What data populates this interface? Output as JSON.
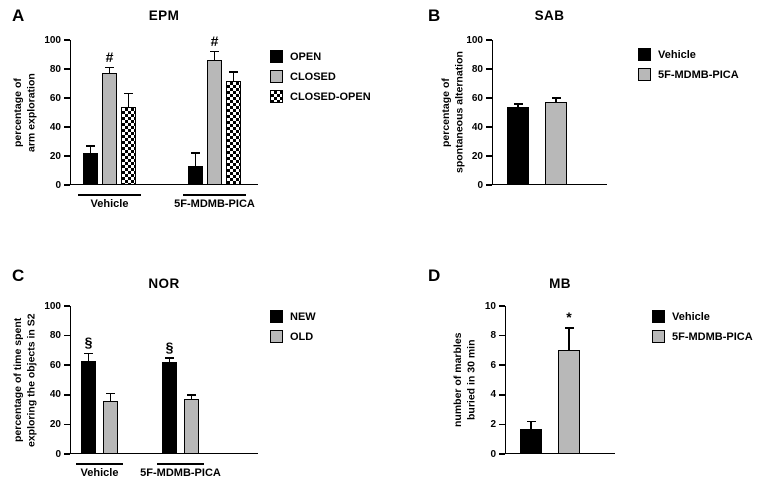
{
  "colors": {
    "bar_black": "#000000",
    "bar_gray": "#b8b8b8",
    "axis": "#000000",
    "background": "#ffffff"
  },
  "chart_data": [
    {
      "type": "bar",
      "label": "A",
      "title": "EPM",
      "ylabel": "percentage of\narm exploration",
      "ylim": [
        0,
        100
      ],
      "yticks": [
        0,
        20,
        40,
        60,
        80,
        100
      ],
      "groups": [
        "Vehicle",
        "5F-MDMB-PICA"
      ],
      "series": [
        {
          "name": "OPEN",
          "fill": "black",
          "values": [
            22,
            13
          ],
          "errors": [
            5,
            9
          ],
          "sig": [
            "",
            ""
          ]
        },
        {
          "name": "CLOSED",
          "fill": "gray",
          "values": [
            77,
            86
          ],
          "errors": [
            4,
            6
          ],
          "sig": [
            "#",
            "#"
          ]
        },
        {
          "name": "CLOSED-OPEN",
          "fill": "checker",
          "values": [
            54,
            72
          ],
          "errors": [
            9,
            6
          ],
          "sig": [
            "",
            ""
          ]
        }
      ],
      "legend_position": "right"
    },
    {
      "type": "bar",
      "label": "B",
      "title": "SAB",
      "ylabel": "percentage of\nspontaneous alternation",
      "ylim": [
        0,
        100
      ],
      "yticks": [
        0,
        20,
        40,
        60,
        80,
        100
      ],
      "groups": [
        ""
      ],
      "series": [
        {
          "name": "Vehicle",
          "fill": "black",
          "values": [
            54
          ],
          "errors": [
            2
          ],
          "sig": [
            ""
          ]
        },
        {
          "name": "5F-MDMB-PICA",
          "fill": "gray",
          "values": [
            57
          ],
          "errors": [
            3
          ],
          "sig": [
            ""
          ]
        }
      ],
      "legend_position": "right"
    },
    {
      "type": "bar",
      "label": "C",
      "title": "NOR",
      "ylabel": "percentage of time spent\nexploring the objects in S2",
      "ylim": [
        0,
        100
      ],
      "yticks": [
        0,
        20,
        40,
        60,
        80,
        100
      ],
      "groups": [
        "Vehicle",
        "5F-MDMB-PICA"
      ],
      "series": [
        {
          "name": "NEW",
          "fill": "black",
          "values": [
            63,
            62
          ],
          "errors": [
            5,
            3
          ],
          "sig": [
            "§",
            "§"
          ]
        },
        {
          "name": "OLD",
          "fill": "gray",
          "values": [
            36,
            37
          ],
          "errors": [
            5,
            3
          ],
          "sig": [
            "",
            ""
          ]
        }
      ],
      "legend_position": "right"
    },
    {
      "type": "bar",
      "label": "D",
      "title": "MB",
      "ylabel": "number of marbles\nburied in 30 min",
      "ylim": [
        0,
        10
      ],
      "yticks": [
        0,
        2,
        4,
        6,
        8,
        10
      ],
      "groups": [
        ""
      ],
      "series": [
        {
          "name": "Vehicle",
          "fill": "black",
          "values": [
            1.7
          ],
          "errors": [
            0.5
          ],
          "sig": [
            ""
          ]
        },
        {
          "name": "5F-MDMB-PICA",
          "fill": "gray",
          "values": [
            7
          ],
          "errors": [
            1.5
          ],
          "sig": [
            "*"
          ]
        }
      ],
      "legend_position": "right"
    }
  ]
}
